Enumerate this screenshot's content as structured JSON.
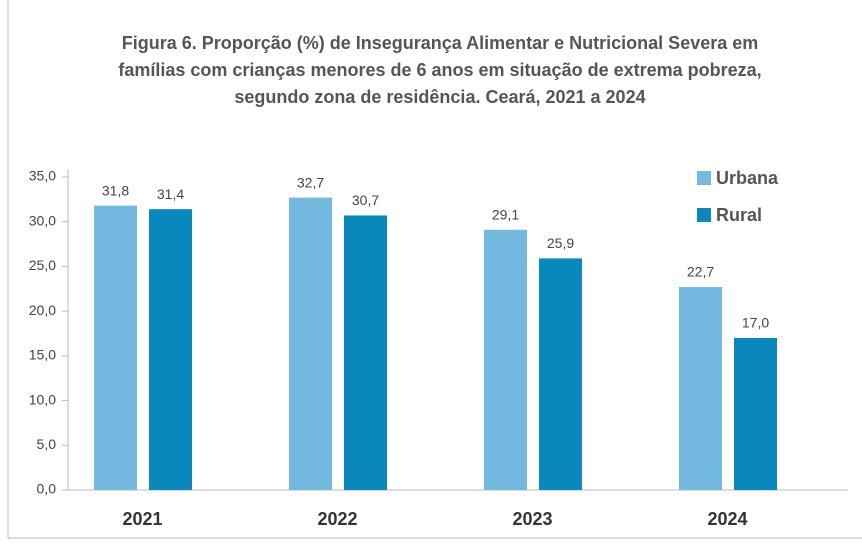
{
  "chart_data": {
    "type": "bar",
    "title": "Figura 6. Proporção (%)  de Insegurança Alimentar e Nutricional Severa em famílias com crianças menores de 6 anos em situação de extrema pobreza, segundo zona de residência. Ceará,  2021 a 2024",
    "categories": [
      "2021",
      "2022",
      "2023",
      "2024"
    ],
    "series": [
      {
        "name": "Urbana",
        "color": "#74b9e0",
        "values": [
          31.8,
          32.7,
          29.1,
          22.7
        ],
        "value_labels": [
          "31,8",
          "32,7",
          "29,1",
          "22,7"
        ]
      },
      {
        "name": "Rural",
        "color": "#0a88bd",
        "values": [
          31.4,
          30.7,
          25.9,
          17.0
        ],
        "value_labels": [
          "31,4",
          "30,7",
          "25,9",
          "17,0"
        ]
      }
    ],
    "ylim": [
      0,
      35
    ],
    "yticks": [
      {
        "value": 0,
        "label": "0,0"
      },
      {
        "value": 5,
        "label": "5,0"
      },
      {
        "value": 10,
        "label": "10,0"
      },
      {
        "value": 15,
        "label": "15,0"
      },
      {
        "value": 20,
        "label": "20,0"
      },
      {
        "value": 25,
        "label": "25,0"
      },
      {
        "value": 30,
        "label": "30,0"
      },
      {
        "value": 35,
        "label": "35,0"
      }
    ],
    "legend": "top-right"
  }
}
